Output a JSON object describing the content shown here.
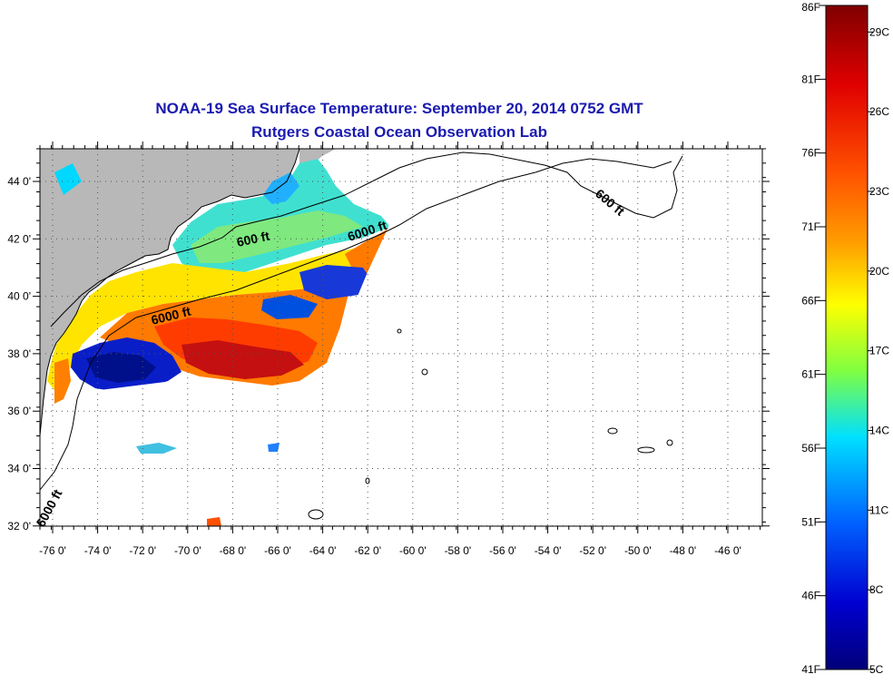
{
  "title": {
    "line1": "NOAA-19 Sea Surface Temperature:  September 20, 2014 0752 GMT",
    "line2": "Rutgers Coastal Ocean Observation Lab"
  },
  "map": {
    "lon_labels": [
      "-76 0'",
      "-74 0'",
      "-72 0'",
      "-70 0'",
      "-68 0'",
      "-66 0'",
      "-64 0'",
      "-62 0'",
      "-60 0'",
      "-58 0'",
      "-56 0'",
      "-54 0'",
      "-52 0'",
      "-50 0'",
      "-48 0'",
      "-46 0'"
    ],
    "lat_labels": [
      "44 0'",
      "42 0'",
      "40 0'",
      "38 0'",
      "36 0'",
      "34 0'",
      "32 0'"
    ],
    "contour_labels": [
      "600 ft",
      "6000 ft",
      "6000 ft",
      "600 ft",
      "6000 ft"
    ],
    "land_color": "#b8b8b8",
    "grid": true
  },
  "colorbar": {
    "fahrenheit_labels": [
      "86F",
      "81F",
      "76F",
      "71F",
      "66F",
      "61F",
      "56F",
      "51F",
      "46F",
      "41F"
    ],
    "celsius_labels": [
      "29C",
      "26C",
      "23C",
      "20C",
      "17C",
      "14C",
      "11C",
      "8C",
      "5C"
    ],
    "range_c": [
      5,
      30
    ],
    "colors": [
      "#8b0000",
      "#ff0000",
      "#ff8000",
      "#ffff00",
      "#00ffff",
      "#0000ff",
      "#00008b"
    ]
  }
}
